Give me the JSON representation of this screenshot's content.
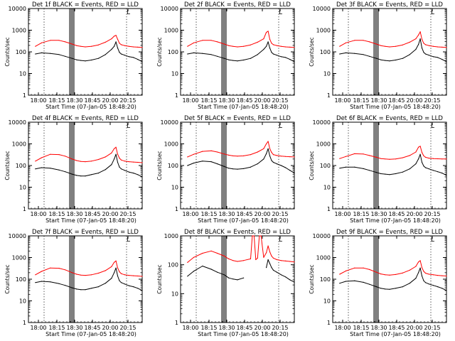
{
  "ylabel": "Counts/sec",
  "xlabel": "Start Time (07-Jan-05 18:48:20)",
  "xtick_labels": [
    "18:00",
    "18:15",
    "18:30",
    "18:45",
    "20:00",
    "20:15"
  ],
  "ytick_labels": [
    "1",
    "10",
    "100",
    "1000",
    "10000"
  ],
  "corner_mark": "L",
  "colors": {
    "events": "#000000",
    "lld": "#ff0000",
    "axes": "#000000",
    "background": "#ffffff"
  },
  "chart_data": [
    {
      "type": "line",
      "title": "Det 1f BLACK = Events, RED = LLD",
      "ylog": true,
      "ylim": [
        1,
        10000
      ],
      "x": [
        0,
        8,
        15,
        25,
        35,
        42,
        50,
        55,
        60,
        65,
        72,
        80,
        88,
        95,
        98,
        100,
        102,
        104,
        106,
        110,
        115,
        120,
        125,
        130
      ],
      "series": [
        {
          "name": "Events",
          "values": [
            null,
            80,
            90,
            85,
            75,
            62,
            50,
            43,
            40,
            38,
            42,
            50,
            75,
            130,
            180,
            290,
            150,
            95,
            80,
            70,
            60,
            55,
            45,
            35
          ]
        },
        {
          "name": "LLD",
          "values": [
            null,
            180,
            260,
            340,
            340,
            290,
            230,
            195,
            180,
            170,
            180,
            210,
            280,
            400,
            530,
            580,
            380,
            250,
            215,
            195,
            180,
            170,
            165,
            160
          ]
        }
      ]
    },
    {
      "type": "line",
      "title": "Det 2f BLACK = Events, RED = LLD",
      "ylog": true,
      "ylim": [
        1,
        10000
      ],
      "x": [
        0,
        8,
        15,
        25,
        35,
        42,
        50,
        55,
        60,
        65,
        72,
        80,
        88,
        95,
        98,
        100,
        102,
        104,
        106,
        110,
        115,
        120,
        125,
        130
      ],
      "series": [
        {
          "name": "Events",
          "values": [
            null,
            80,
            90,
            85,
            75,
            62,
            50,
            43,
            40,
            38,
            42,
            50,
            75,
            130,
            180,
            290,
            150,
            95,
            80,
            70,
            60,
            55,
            45,
            35
          ]
        },
        {
          "name": "LLD",
          "values": [
            null,
            180,
            260,
            340,
            340,
            290,
            230,
            195,
            180,
            170,
            180,
            210,
            280,
            400,
            800,
            900,
            380,
            250,
            215,
            195,
            180,
            170,
            165,
            160
          ]
        }
      ]
    },
    {
      "type": "line",
      "title": "Det 3f BLACK = Events, RED = LLD",
      "ylog": true,
      "ylim": [
        1,
        10000
      ],
      "x": [
        0,
        8,
        15,
        25,
        35,
        42,
        50,
        55,
        60,
        65,
        72,
        80,
        88,
        95,
        98,
        100,
        102,
        104,
        106,
        110,
        115,
        120,
        125,
        130
      ],
      "series": [
        {
          "name": "Events",
          "values": [
            null,
            80,
            90,
            85,
            75,
            62,
            50,
            43,
            40,
            38,
            42,
            50,
            75,
            130,
            220,
            400,
            150,
            95,
            80,
            70,
            60,
            55,
            45,
            35
          ]
        },
        {
          "name": "LLD",
          "values": [
            null,
            180,
            260,
            340,
            340,
            290,
            230,
            195,
            180,
            170,
            180,
            210,
            280,
            400,
            600,
            850,
            380,
            250,
            215,
            195,
            180,
            170,
            165,
            160
          ]
        }
      ]
    },
    {
      "type": "line",
      "title": "Det 4f BLACK = Events, RED = LLD",
      "ylog": true,
      "ylim": [
        1,
        10000
      ],
      "x": [
        0,
        8,
        15,
        25,
        35,
        42,
        50,
        55,
        60,
        65,
        72,
        80,
        88,
        95,
        98,
        100,
        102,
        104,
        106,
        110,
        115,
        120,
        125,
        130
      ],
      "series": [
        {
          "name": "Events",
          "values": [
            null,
            70,
            80,
            75,
            62,
            52,
            40,
            35,
            33,
            33,
            38,
            45,
            65,
            110,
            200,
            330,
            140,
            85,
            70,
            60,
            50,
            45,
            38,
            30
          ]
        },
        {
          "name": "LLD",
          "values": [
            null,
            160,
            230,
            330,
            320,
            270,
            200,
            170,
            155,
            150,
            160,
            190,
            250,
            380,
            600,
            700,
            330,
            220,
            180,
            160,
            150,
            145,
            140,
            135
          ]
        }
      ]
    },
    {
      "type": "line",
      "title": "Det 5f BLACK = Events, RED = LLD",
      "ylog": true,
      "ylim": [
        1,
        10000
      ],
      "x": [
        0,
        8,
        15,
        25,
        35,
        42,
        50,
        55,
        60,
        65,
        72,
        80,
        88,
        95,
        98,
        100,
        102,
        104,
        106,
        110,
        115,
        120,
        125,
        130
      ],
      "series": [
        {
          "name": "Events",
          "values": [
            null,
            100,
            130,
            160,
            150,
            120,
            90,
            75,
            70,
            68,
            72,
            85,
            120,
            200,
            350,
            600,
            280,
            170,
            140,
            120,
            100,
            80,
            60,
            45
          ]
        },
        {
          "name": "LLD",
          "values": [
            null,
            250,
            330,
            450,
            480,
            420,
            340,
            300,
            280,
            270,
            280,
            320,
            420,
            600,
            1000,
            1300,
            600,
            400,
            320,
            290,
            270,
            260,
            255,
            250
          ]
        }
      ]
    },
    {
      "type": "line",
      "title": "Det 6f BLACK = Events, RED = LLD",
      "ylog": true,
      "ylim": [
        1,
        10000
      ],
      "x": [
        0,
        8,
        15,
        25,
        35,
        42,
        50,
        55,
        60,
        65,
        72,
        80,
        88,
        95,
        98,
        100,
        102,
        104,
        106,
        110,
        115,
        120,
        125,
        130
      ],
      "series": [
        {
          "name": "Events",
          "values": [
            null,
            75,
            85,
            85,
            72,
            60,
            48,
            42,
            40,
            38,
            42,
            50,
            70,
            120,
            200,
            330,
            140,
            95,
            80,
            70,
            60,
            52,
            45,
            35
          ]
        },
        {
          "name": "LLD",
          "values": [
            null,
            210,
            260,
            350,
            340,
            290,
            240,
            210,
            200,
            195,
            200,
            230,
            290,
            420,
            700,
            780,
            400,
            280,
            240,
            220,
            210,
            205,
            200,
            200
          ]
        }
      ]
    },
    {
      "type": "line",
      "title": "Det 7f BLACK = Events, RED = LLD",
      "ylog": true,
      "ylim": [
        1,
        10000
      ],
      "x": [
        0,
        8,
        15,
        25,
        35,
        42,
        50,
        55,
        60,
        65,
        72,
        80,
        88,
        95,
        98,
        100,
        102,
        104,
        106,
        110,
        115,
        120,
        125,
        130
      ],
      "series": [
        {
          "name": "Events",
          "values": [
            null,
            70,
            80,
            75,
            62,
            52,
            40,
            35,
            33,
            33,
            38,
            45,
            65,
            110,
            200,
            330,
            140,
            85,
            70,
            60,
            50,
            45,
            38,
            30
          ]
        },
        {
          "name": "LLD",
          "values": [
            null,
            160,
            230,
            330,
            320,
            270,
            200,
            170,
            155,
            150,
            160,
            190,
            250,
            380,
            600,
            700,
            330,
            220,
            180,
            160,
            150,
            145,
            140,
            135
          ]
        }
      ]
    },
    {
      "type": "line",
      "title": "Det 8f BLACK = Events, RED = LLD",
      "ylog": true,
      "ylim": [
        1,
        1000
      ],
      "x": [
        0,
        8,
        15,
        25,
        35,
        42,
        50,
        55,
        60,
        65,
        72,
        80,
        82,
        84,
        86,
        88,
        90,
        92,
        95,
        98,
        100,
        102,
        104,
        106,
        110,
        115,
        120,
        125,
        130
      ],
      "series": [
        {
          "name": "Events",
          "values": [
            null,
            40,
            60,
            90,
            70,
            55,
            45,
            35,
            32,
            30,
            35,
            null,
            null,
            null,
            null,
            null,
            null,
            null,
            null,
            80,
            150,
            110,
            80,
            65,
            55,
            45,
            38,
            30,
            25
          ]
        },
        {
          "name": "LLD",
          "values": [
            null,
            120,
            180,
            250,
            300,
            250,
            200,
            160,
            140,
            130,
            140,
            160,
            1000,
            1000,
            150,
            170,
            1000,
            1000,
            180,
            260,
            450,
            280,
            200,
            170,
            150,
            140,
            135,
            130,
            125
          ]
        }
      ]
    },
    {
      "type": "line",
      "title": "Det 9f BLACK = Events, RED = LLD",
      "ylog": true,
      "ylim": [
        1,
        10000
      ],
      "x": [
        0,
        8,
        15,
        25,
        35,
        42,
        50,
        55,
        60,
        65,
        72,
        80,
        88,
        95,
        98,
        100,
        102,
        104,
        106,
        110,
        115,
        120,
        125,
        130
      ],
      "series": [
        {
          "name": "Events",
          "values": [
            null,
            65,
            80,
            85,
            72,
            58,
            45,
            38,
            35,
            34,
            38,
            45,
            65,
            110,
            200,
            330,
            140,
            85,
            70,
            60,
            52,
            45,
            38,
            30
          ]
        },
        {
          "name": "LLD",
          "values": [
            null,
            170,
            240,
            330,
            330,
            280,
            210,
            175,
            160,
            155,
            165,
            195,
            260,
            390,
            620,
            720,
            340,
            230,
            190,
            170,
            160,
            150,
            145,
            140
          ]
        }
      ]
    }
  ]
}
